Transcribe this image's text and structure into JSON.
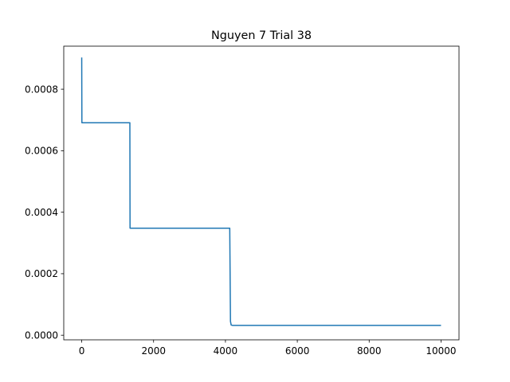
{
  "chart_data": {
    "type": "line",
    "title": "Nguyen 7 Trial 38",
    "xlabel": "",
    "ylabel": "",
    "xlim": [
      -500,
      10500
    ],
    "ylim": [
      -1.5e-05,
      0.00094
    ],
    "xticks": [
      0,
      2000,
      4000,
      6000,
      8000,
      10000
    ],
    "xtick_labels": [
      "0",
      "2000",
      "4000",
      "6000",
      "8000",
      "10000"
    ],
    "yticks": [
      0.0,
      0.0002,
      0.0004,
      0.0006,
      0.0008
    ],
    "ytick_labels": [
      "0.0000",
      "0.0002",
      "0.0004",
      "0.0006",
      "0.0008"
    ],
    "grid": false,
    "legend": "none",
    "series": [
      {
        "color": "#1f77b4",
        "x": [
          0,
          5,
          1340,
          1345,
          4120,
          4140,
          4160,
          4200,
          10000
        ],
        "y": [
          0.000903,
          0.000691,
          0.000691,
          0.000348,
          0.000348,
          4.5e-05,
          3.3e-05,
          3.2e-05,
          3.2e-05
        ]
      }
    ]
  }
}
